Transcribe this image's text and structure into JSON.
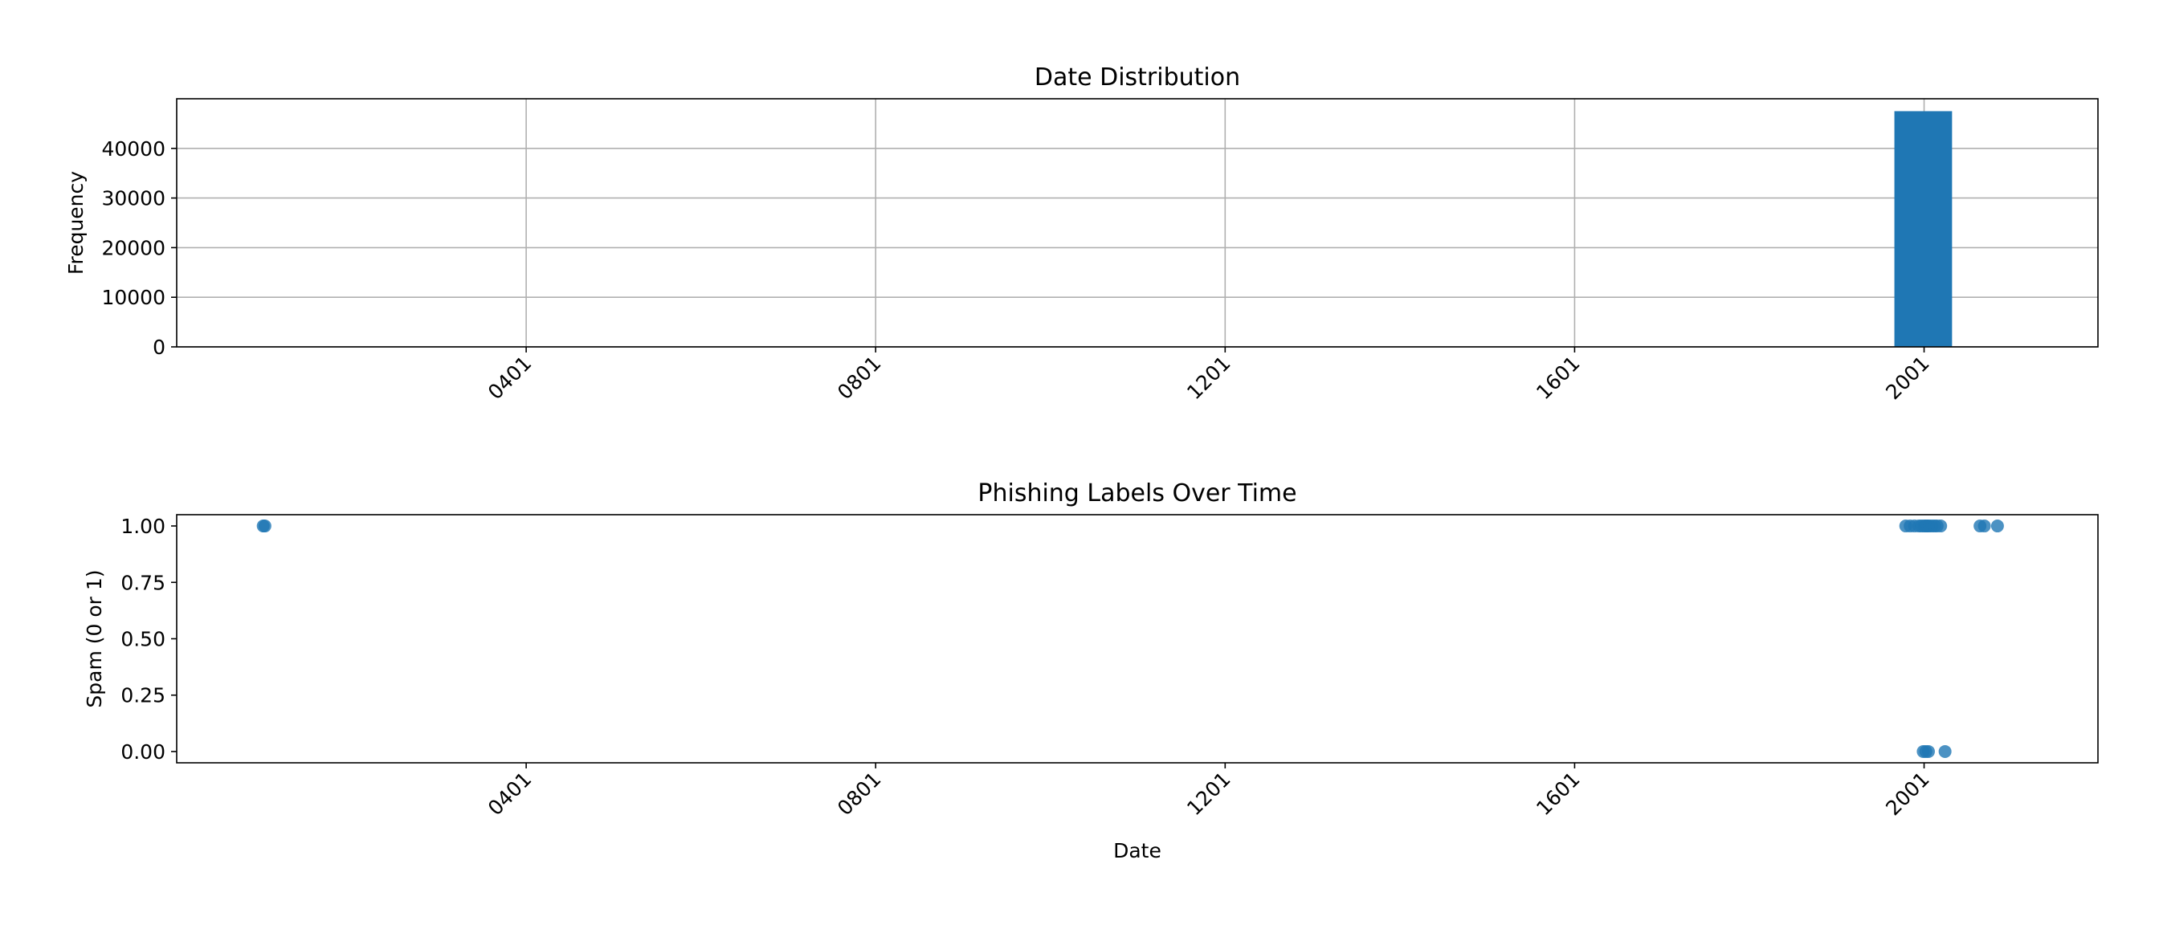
{
  "chart_data": [
    {
      "type": "bar",
      "title": "Date Distribution",
      "xlabel": "",
      "ylabel": "Frequency",
      "x_tick_labels": [
        "0401",
        "0801",
        "1201",
        "1601",
        "2001"
      ],
      "x_tick_years": [
        401,
        801,
        1201,
        1601,
        2001
      ],
      "y_ticks": [
        0,
        10000,
        20000,
        30000,
        40000
      ],
      "y_tick_labels": [
        "0",
        "10000",
        "20000",
        "30000",
        "40000"
      ],
      "xlim": [
        1,
        2200
      ],
      "ylim": [
        0,
        50000
      ],
      "grid": true,
      "bars": [
        {
          "start": 1,
          "end": 67,
          "value": 3
        },
        {
          "start": 1967,
          "end": 2033,
          "value": 47500
        },
        {
          "start": 2033,
          "end": 2100,
          "value": 10
        }
      ],
      "color": "#1f77b4"
    },
    {
      "type": "scatter",
      "title": "Phishing Labels Over Time",
      "xlabel": "Date",
      "ylabel": "Spam (0 or 1)",
      "x_tick_labels": [
        "0401",
        "0801",
        "1201",
        "1601",
        "2001"
      ],
      "x_tick_years": [
        401,
        801,
        1201,
        1601,
        2001
      ],
      "y_ticks": [
        0,
        0.25,
        0.5,
        0.75,
        1.0
      ],
      "y_tick_labels": [
        "0.00",
        "0.25",
        "0.50",
        "0.75",
        "1.00"
      ],
      "xlim": [
        1,
        2200
      ],
      "ylim": [
        -0.05,
        1.05
      ],
      "grid": false,
      "points": [
        {
          "x": 100,
          "y": 1
        },
        {
          "x": 102,
          "y": 1
        },
        {
          "x": 1980,
          "y": 1
        },
        {
          "x": 1985,
          "y": 1
        },
        {
          "x": 1990,
          "y": 1
        },
        {
          "x": 1995,
          "y": 1
        },
        {
          "x": 1998,
          "y": 1
        },
        {
          "x": 2001,
          "y": 1
        },
        {
          "x": 2003,
          "y": 1
        },
        {
          "x": 2005,
          "y": 1
        },
        {
          "x": 2007,
          "y": 1
        },
        {
          "x": 2010,
          "y": 1
        },
        {
          "x": 2013,
          "y": 1
        },
        {
          "x": 2016,
          "y": 1
        },
        {
          "x": 2020,
          "y": 1
        },
        {
          "x": 2065,
          "y": 1
        },
        {
          "x": 2070,
          "y": 1
        },
        {
          "x": 2085,
          "y": 1
        },
        {
          "x": 2000,
          "y": 0
        },
        {
          "x": 2003,
          "y": 0
        },
        {
          "x": 2006,
          "y": 0
        },
        {
          "x": 2025,
          "y": 0
        }
      ],
      "color": "#1f77b4"
    }
  ]
}
